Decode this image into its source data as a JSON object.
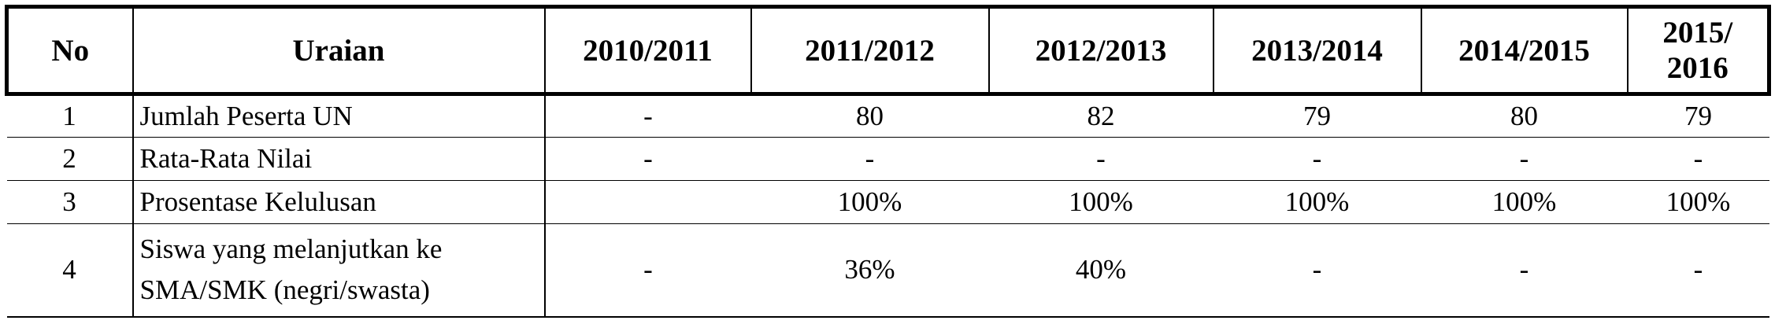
{
  "table": {
    "headers": [
      "No",
      "Uraian",
      "2010/2011",
      "2011/2012",
      "2012/2013",
      "2013/2014",
      "2014/2015",
      "2015/ 2016"
    ],
    "rows": [
      {
        "no": "1",
        "uraian": "Jumlah Peserta UN",
        "values": [
          "-",
          "80",
          "82",
          "79",
          "80",
          "79"
        ]
      },
      {
        "no": "2",
        "uraian": "Rata-Rata Nilai",
        "values": [
          "-",
          "-",
          "-",
          "-",
          "-",
          "-"
        ]
      },
      {
        "no": "3",
        "uraian": "Prosentase Kelulusan",
        "values": [
          "",
          "100%",
          "100%",
          "100%",
          "100%",
          "100%"
        ]
      },
      {
        "no": "4",
        "uraian_lines": [
          "Siswa yang melanjutkan ke",
          "SMA/SMK (negri/swasta)"
        ],
        "values": [
          "-",
          "36%",
          "40%",
          "-",
          "-",
          "-"
        ]
      }
    ]
  }
}
